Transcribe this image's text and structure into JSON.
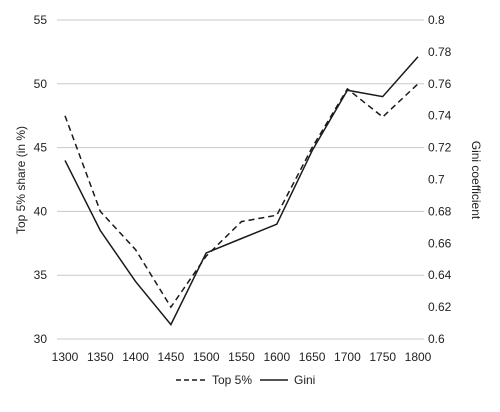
{
  "chart_data": {
    "type": "line",
    "x": [
      1300,
      1350,
      1400,
      1450,
      1500,
      1550,
      1600,
      1650,
      1700,
      1750,
      1800
    ],
    "series": [
      {
        "name": "Top 5%",
        "axis": "left",
        "style": "dashed",
        "values": [
          47.5,
          40.0,
          37.0,
          32.5,
          36.5,
          39.2,
          39.7,
          45.0,
          49.6,
          47.4,
          50.0
        ]
      },
      {
        "name": "Gini",
        "axis": "right",
        "style": "solid",
        "values": [
          0.712,
          0.668,
          0.636,
          0.609,
          0.654,
          0.663,
          0.672,
          0.718,
          0.756,
          0.752,
          0.777
        ]
      }
    ],
    "ylabel_left": "Top 5% share (in %)",
    "ylabel_right": "Gini coefficient",
    "xlabel": "",
    "title": "",
    "ylim_left": [
      30,
      55
    ],
    "ylim_right": [
      0.6,
      0.8
    ],
    "yticks_left": [
      "30",
      "35",
      "40",
      "45",
      "50",
      "55"
    ],
    "yticks_right": [
      "0.6",
      "0.62",
      "0.64",
      "0.66",
      "0.68",
      "0.7",
      "0.72",
      "0.74",
      "0.76",
      "0.78",
      "0.8"
    ],
    "xticks": [
      "1300",
      "1350",
      "1400",
      "1450",
      "1500",
      "1550",
      "1600",
      "1650",
      "1700",
      "1750",
      "1800"
    ],
    "grid": "horizontal",
    "legend_position": "bottom",
    "colors": {
      "line": "#1a1a1a",
      "grid": "#c8c8c8",
      "text": "#222222"
    }
  }
}
